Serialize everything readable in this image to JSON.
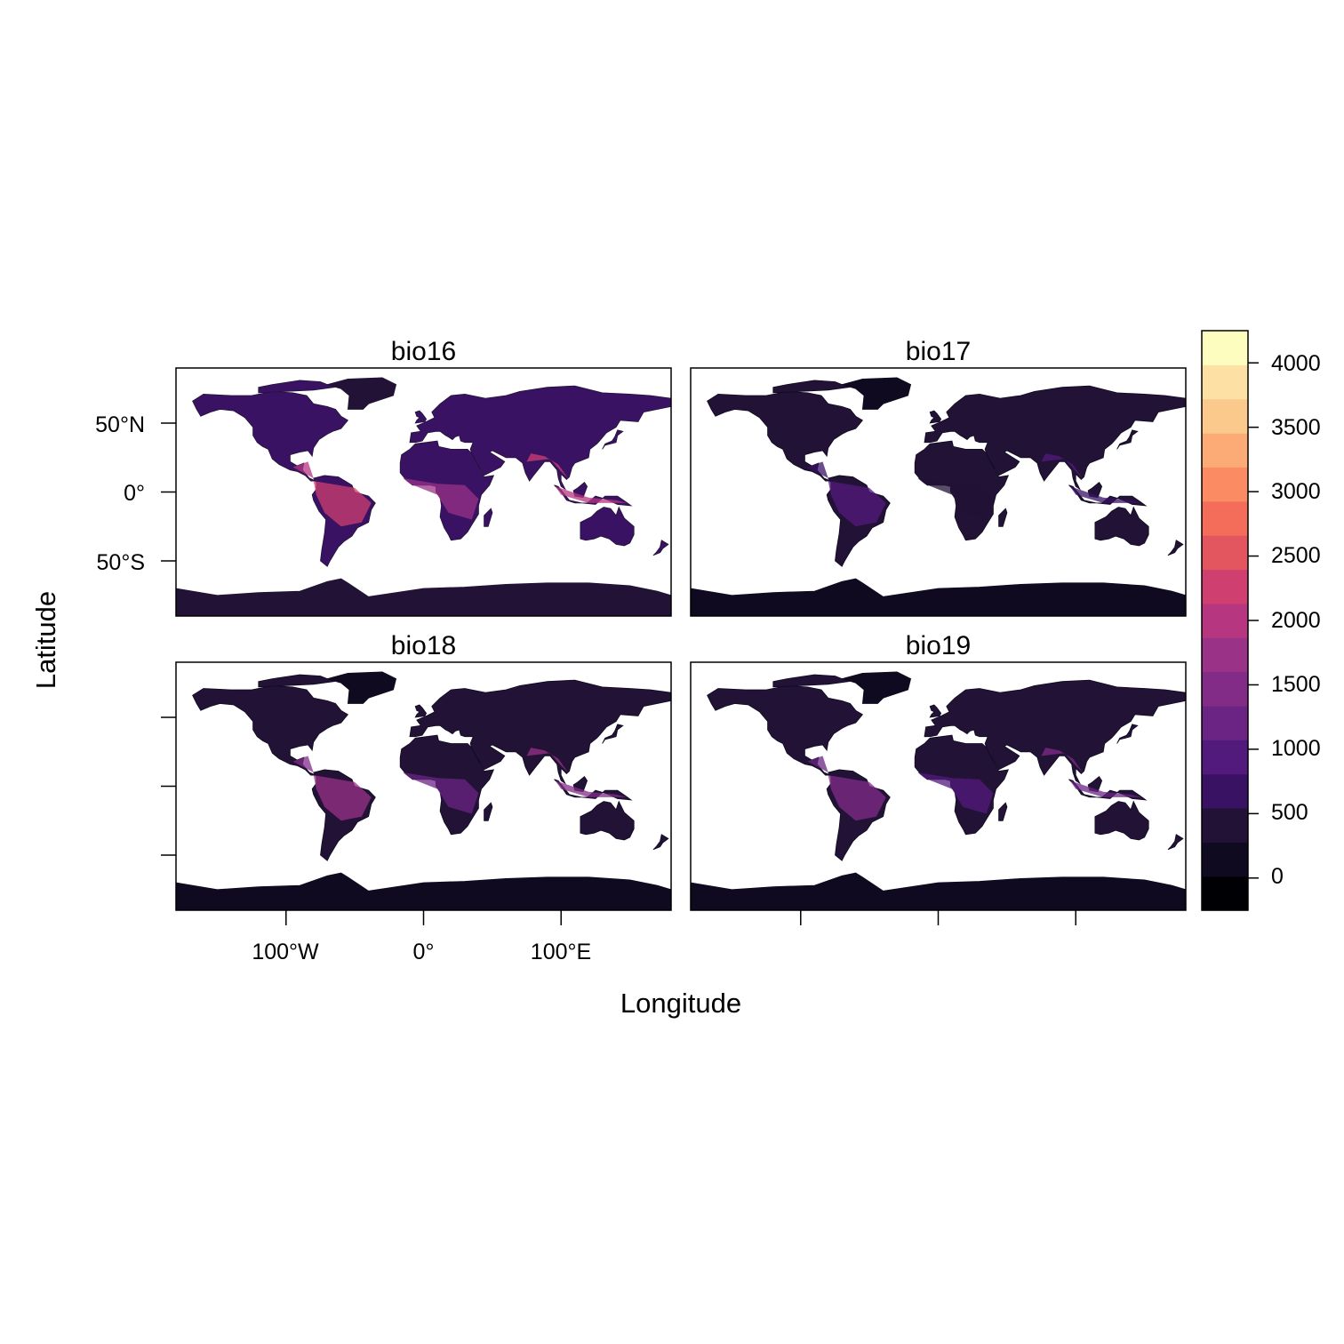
{
  "figure": {
    "xlabel": "Longitude",
    "ylabel": "Latitude"
  },
  "panels": [
    {
      "title": "bio16",
      "mean_band": 2,
      "hot_band": 9
    },
    {
      "title": "bio17",
      "mean_band": 1,
      "hot_band": 4
    },
    {
      "title": "bio18",
      "mean_band": 1,
      "hot_band": 7
    },
    {
      "title": "bio19",
      "mean_band": 1,
      "hot_band": 6
    }
  ],
  "axes": {
    "y_ticks": [
      {
        "value": 50,
        "label": "50°N"
      },
      {
        "value": 0,
        "label": "0°"
      },
      {
        "value": -50,
        "label": "50°S"
      }
    ],
    "x_ticks": [
      {
        "value": -100,
        "label": "100°W"
      },
      {
        "value": 0,
        "label": "0°"
      },
      {
        "value": 100,
        "label": "100°E"
      }
    ],
    "x_range": [
      -180,
      180
    ],
    "y_range": [
      -90,
      90
    ]
  },
  "colorbar": {
    "range": [
      -250,
      4250
    ],
    "ticks": [
      "0",
      "500",
      "1000",
      "1500",
      "2000",
      "2500",
      "3000",
      "3500",
      "4000"
    ],
    "tick_values": [
      0,
      500,
      1000,
      1500,
      2000,
      2500,
      3000,
      3500,
      4000
    ],
    "colors": [
      "#000004",
      "#0f0a20",
      "#221236",
      "#3a1264",
      "#531a7e",
      "#6b2484",
      "#822c88",
      "#9a3288",
      "#b73680",
      "#cf4070",
      "#e35660",
      "#f46c5a",
      "#fa8b62",
      "#fcab76",
      "#fcc98c",
      "#fde0a3",
      "#fcfdbf"
    ]
  },
  "chart_data": {
    "type": "heatmap",
    "title": "",
    "xlabel": "Longitude",
    "ylabel": "Latitude",
    "facets": [
      "bio16",
      "bio17",
      "bio18",
      "bio19"
    ],
    "xlim": [
      -180,
      180
    ],
    "ylim": [
      -90,
      90
    ],
    "x_ticks": [
      "100°W",
      "0°",
      "100°E"
    ],
    "y_ticks": [
      "50°N",
      "0°",
      "50°S"
    ],
    "colorbar_range": [
      -250,
      4250
    ],
    "colorbar_ticks": [
      0,
      500,
      1000,
      1500,
      2000,
      2500,
      3000,
      3500,
      4000
    ],
    "grid": false
  }
}
